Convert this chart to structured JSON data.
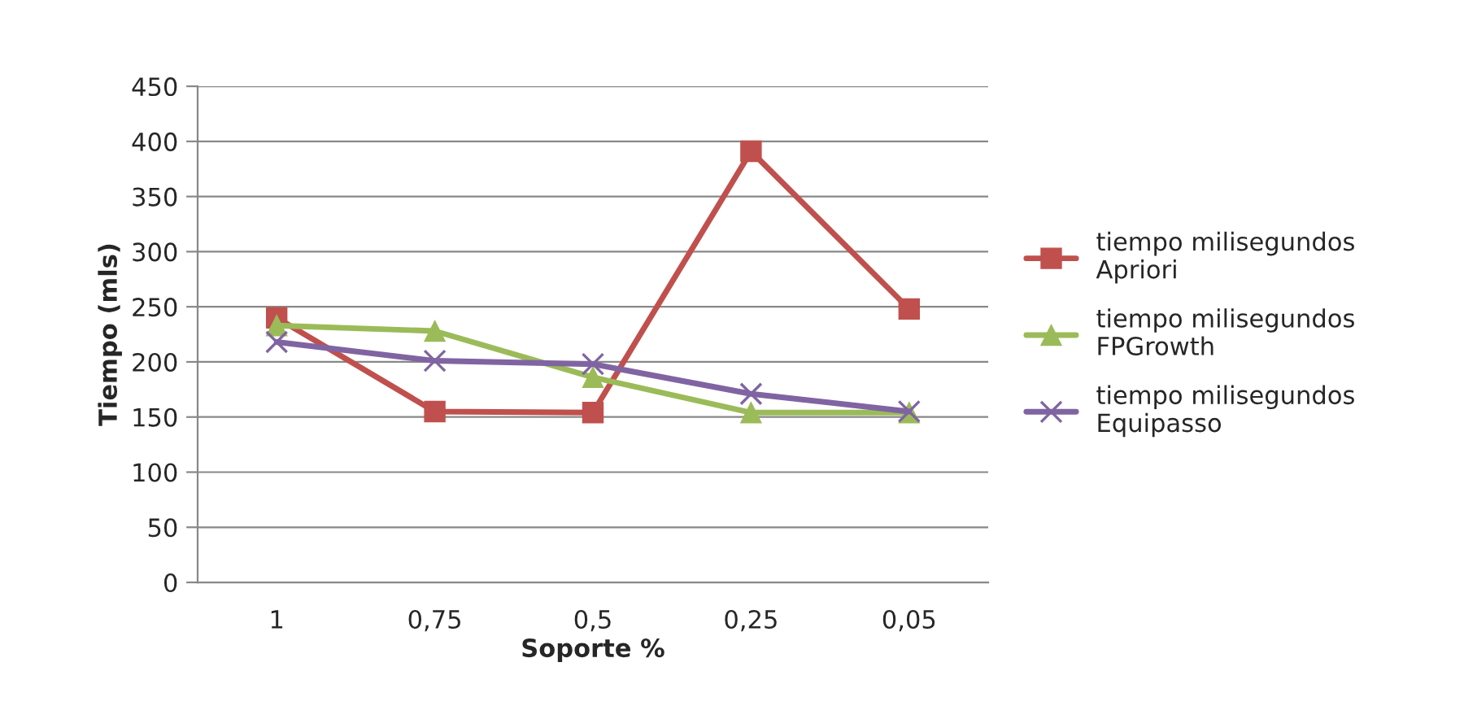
{
  "chart_data": {
    "type": "line",
    "xlabel": "Soporte %",
    "ylabel": "Tiempo (mls)",
    "categories": [
      "1",
      "0,75",
      "0,5",
      "0,25",
      "0,05"
    ],
    "series": [
      {
        "name": "tiempo milisegundos\nApriori",
        "color": "#c0504d",
        "marker": "square",
        "values": [
          240,
          155,
          154,
          391,
          248
        ]
      },
      {
        "name": "tiempo milisegundos\nFPGrowth",
        "color": "#9bbb59",
        "marker": "triangle",
        "values": [
          233,
          228,
          186,
          154,
          154
        ]
      },
      {
        "name": "tiempo milisegundos\nEquipasso",
        "color": "#8064a2",
        "marker": "cross",
        "values": [
          218,
          201,
          198,
          171,
          155
        ]
      }
    ],
    "ylim": [
      0,
      450
    ],
    "yticks": [
      0,
      50,
      100,
      150,
      200,
      250,
      300,
      350,
      400,
      450
    ],
    "grid": "y",
    "legend": "right"
  }
}
